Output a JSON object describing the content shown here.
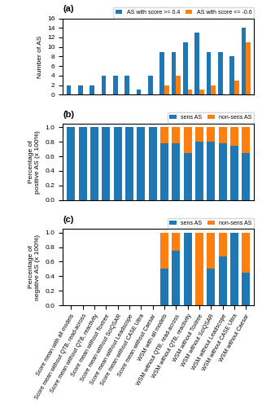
{
  "chart_data": [
    {
      "type": "bar",
      "title": "(a)",
      "categories": [
        "Score mean with all models",
        "Score mean without QTB, read-across",
        "Score mean without QTB, reactivity",
        "Score mean without Toxtree",
        "Score mean without SciQSAR",
        "Score mean without Leadscope",
        "Score mean without CASE Ultra",
        "Score mean without Caesar",
        "WSM with all models",
        "WSM without QTB, read-across",
        "WSM without QTB, reactivity",
        "WSM without Toxtree",
        "WSM without SciQSAR",
        "WSM without Leadscope",
        "WSM without CASE Ultra",
        "WSM without Caesar"
      ],
      "series": [
        {
          "name": "AS with score >= 0.4",
          "values": [
            2,
            2,
            2,
            4,
            4,
            4,
            1,
            4,
            9,
            9,
            11,
            13,
            9,
            9,
            8,
            14
          ]
        },
        {
          "name": "AS with score <= -0.6",
          "values": [
            0,
            0,
            0,
            0,
            0,
            0,
            0,
            0,
            2,
            4,
            1,
            1,
            2,
            0,
            3,
            11
          ]
        }
      ],
      "ylabel": "Number of AS",
      "ylim": [
        0,
        16
      ],
      "yticks": [
        0,
        2,
        4,
        6,
        8,
        10,
        12,
        14,
        16
      ],
      "legend": "upper right",
      "tick_labels": "y"
    },
    {
      "type": "bar",
      "title": "(b)",
      "categories": [
        "Score mean with all models",
        "Score mean without QTB, read-across",
        "Score mean without QTB, reactivity",
        "Score mean without Toxtree",
        "Score mean without SciQSAR",
        "Score mean without Leadscope",
        "Score mean without CASE Ultra",
        "Score mean without Caesar",
        "WSM with all models",
        "WSM without QTB, read-across",
        "WSM without QTB, reactivity",
        "WSM without Toxtree",
        "WSM without SciQSAR",
        "WSM without Leadscope",
        "WSM without CASE Ultra",
        "WSM without Caesar"
      ],
      "series": [
        {
          "name": "sens AS",
          "values": [
            1.0,
            1.0,
            1.0,
            1.0,
            1.0,
            1.0,
            1.0,
            1.0,
            0.78,
            0.78,
            0.64,
            0.8,
            0.8,
            0.78,
            0.75,
            0.64
          ]
        },
        {
          "name": "non-sens AS",
          "values": [
            0.0,
            0.0,
            0.0,
            0.0,
            0.0,
            0.0,
            0.0,
            0.0,
            0.22,
            0.22,
            0.36,
            0.2,
            0.2,
            0.22,
            0.25,
            0.36
          ]
        }
      ],
      "stacked": true,
      "ylabel": "Percentage of\npositive AS (x 100%)",
      "ylim": [
        0,
        1.05
      ],
      "yticks": [
        {
          "value": 0,
          "label": "0.0"
        },
        0.2,
        0.4,
        0.6,
        0.8,
        {
          "value": 1,
          "label": "1.0"
        }
      ],
      "legend": "upper right",
      "tick_labels": "y"
    },
    {
      "type": "bar",
      "title": "(c)",
      "categories": [
        "Score mean with all models",
        "Score mean without QTB, read-across",
        "Score mean without QTB, reactivity",
        "Score mean without Toxtree",
        "Score mean without SciQSAR",
        "Score mean without Leadscope",
        "Score mean without CASE Ultra",
        "Score mean without Caesar",
        "WSM with all models",
        "WSM without QTB, read-across",
        "WSM without QTB, reactivity",
        "WSM without Toxtree",
        "WSM without SciQSAR",
        "WSM without Leadscope",
        "WSM without CASE Ultra",
        "WSM without Caesar"
      ],
      "series": [
        {
          "name": "sens AS",
          "values": [
            0.0,
            0.0,
            0.0,
            0.0,
            0.0,
            0.0,
            0.0,
            0.0,
            0.5,
            0.75,
            1.0,
            0.0,
            0.5,
            0.67,
            1.0,
            0.45
          ]
        },
        {
          "name": "non-sens AS",
          "values": [
            0.0,
            0.0,
            0.0,
            0.0,
            0.0,
            0.0,
            0.0,
            0.0,
            0.5,
            0.25,
            0.0,
            1.0,
            0.5,
            0.33,
            0.0,
            0.55
          ]
        }
      ],
      "stacked": true,
      "ylabel": "Percentage of\nnegative AS (x 100%)",
      "ylim": [
        0,
        1.05
      ],
      "yticks": [
        {
          "value": 0,
          "label": "0.0"
        },
        0.2,
        0.4,
        0.6,
        0.8,
        {
          "value": 1,
          "label": "1.0"
        }
      ],
      "legend": "upper right"
    }
  ]
}
